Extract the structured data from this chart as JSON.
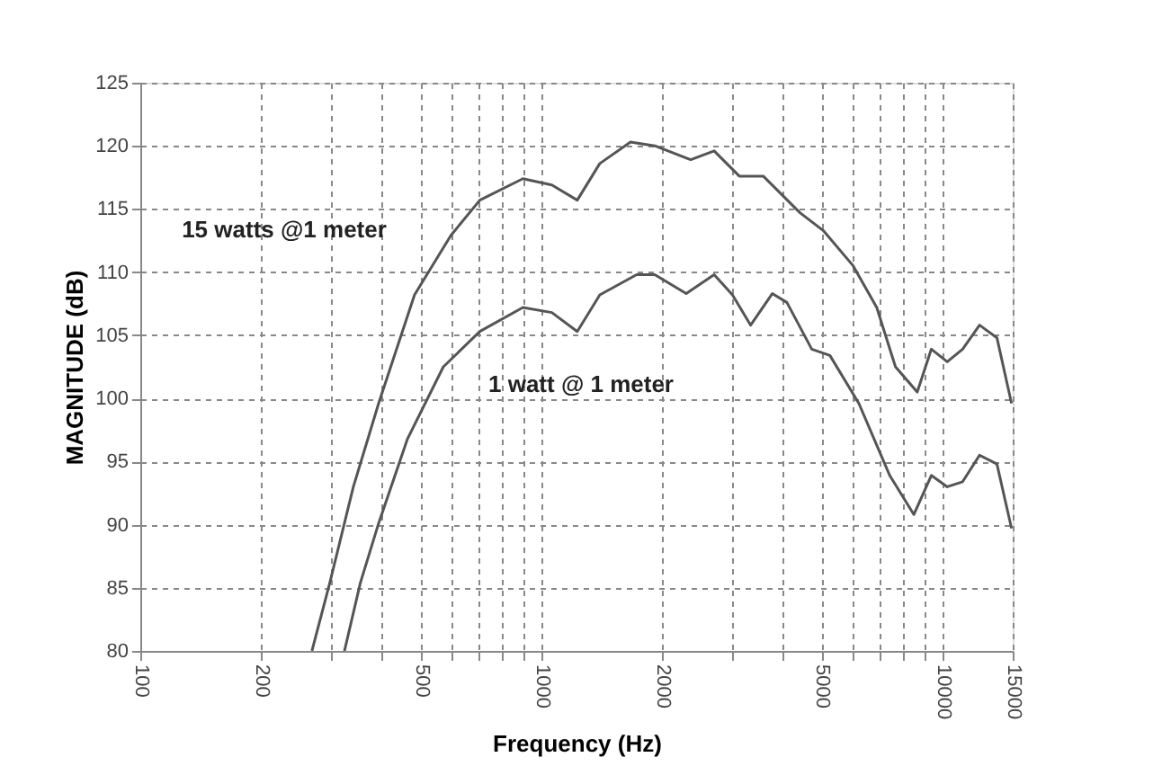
{
  "chart_data": {
    "type": "line",
    "xlabel": "Frequency (Hz)",
    "ylabel": "MAGNITUDE (dB)",
    "log": "x",
    "grid": true,
    "marker": "none",
    "line_style": "solid",
    "xlim": [
      100,
      15000
    ],
    "ylim": [
      80,
      125
    ],
    "xticks": [
      100,
      200,
      {
        "value": 300,
        "label": null
      },
      {
        "value": 400,
        "label": null
      },
      500,
      {
        "value": 600,
        "label": null
      },
      {
        "value": 700,
        "label": null
      },
      {
        "value": 800,
        "label": null
      },
      {
        "value": 900,
        "label": null
      },
      1000,
      2000,
      {
        "value": 3000,
        "label": null
      },
      {
        "value": 4000,
        "label": null
      },
      5000,
      {
        "value": 6000,
        "label": null
      },
      {
        "value": 7000,
        "label": null
      },
      {
        "value": 8000,
        "label": null
      },
      {
        "value": 9000,
        "label": null
      },
      10000,
      15000
    ],
    "yticks": [
      80,
      85,
      90,
      95,
      100,
      105,
      110,
      115,
      120,
      125
    ],
    "series": [
      {
        "color": "#555555",
        "x": [
          268,
          297,
          340,
          393,
          483,
          595,
          703,
          900,
          1063,
          1230,
          1400,
          1670,
          1920,
          2360,
          2700,
          3120,
          3580,
          4420,
          5050,
          6000,
          6870,
          7650,
          8670,
          9400,
          10300,
          11250,
          12400,
          13700,
          14900
        ],
        "values": [
          80,
          85.4,
          93,
          99.6,
          108.2,
          112.9,
          115.7,
          117.4,
          116.9,
          115.7,
          118.6,
          120.3,
          120,
          118.9,
          119.6,
          117.6,
          117.6,
          114.7,
          113.3,
          110.5,
          107.2,
          102.5,
          100.5,
          103.9,
          102.9,
          103.9,
          105.8,
          104.8,
          99.6
        ]
      },
      {
        "color": "#555555",
        "x": [
          323,
          354,
          393,
          464,
          570,
          703,
          900,
          1063,
          1230,
          1400,
          1730,
          1920,
          2300,
          2700,
          3000,
          3330,
          3770,
          4100,
          4730,
          5250,
          6200,
          7400,
          8500,
          9400,
          10300,
          11250,
          12400,
          13700,
          14900
        ],
        "values": [
          80,
          85.4,
          90.1,
          96.8,
          102.5,
          105.3,
          107.2,
          106.8,
          105.3,
          108.2,
          109.8,
          109.8,
          108.3,
          109.8,
          108.2,
          105.8,
          108.3,
          107.6,
          103.9,
          103.4,
          99.6,
          93.9,
          90.8,
          93.9,
          93,
          93.4,
          95.5,
          94.8,
          89.7
        ]
      }
    ],
    "annotations": [
      "15 watts @1 meter",
      "1 watt @ 1 meter"
    ]
  }
}
